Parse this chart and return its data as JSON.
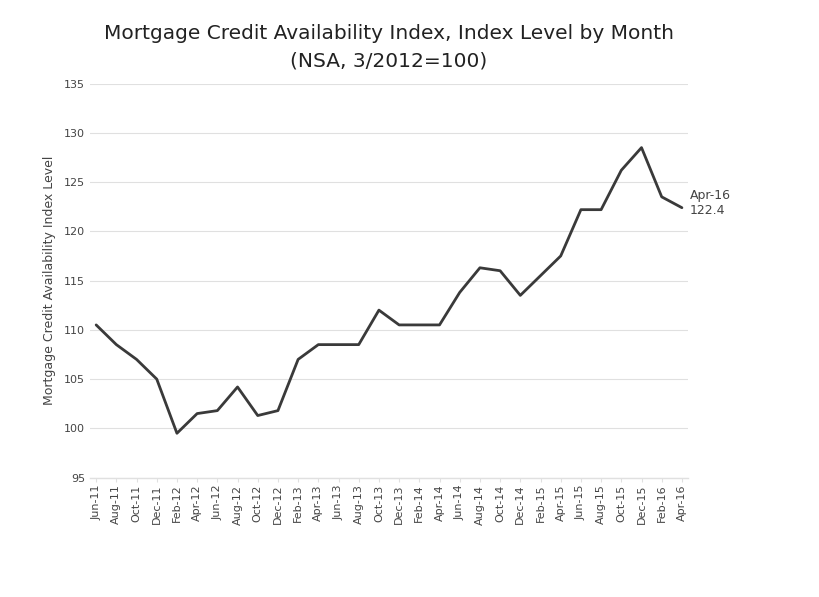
{
  "title": "Mortgage Credit Availability Index, Index Level by Month",
  "subtitle": "(NSA, 3/2012=100)",
  "ylabel": "Mortgage Credit Availability Index Level",
  "annotation_label": "Apr-16\n122.4",
  "line_color": "#3a3a3a",
  "background_color": "#ffffff",
  "border_color": "#cccccc",
  "ylim": [
    95,
    135
  ],
  "yticks": [
    95,
    100,
    105,
    110,
    115,
    120,
    125,
    130,
    135
  ],
  "x_labels": [
    "Jun-11",
    "Aug-11",
    "Oct-11",
    "Dec-11",
    "Feb-12",
    "Apr-12",
    "Jun-12",
    "Aug-12",
    "Oct-12",
    "Dec-12",
    "Feb-13",
    "Apr-13",
    "Jun-13",
    "Aug-13",
    "Oct-13",
    "Dec-13",
    "Feb-14",
    "Apr-14",
    "Jun-14",
    "Aug-14",
    "Oct-14",
    "Dec-14",
    "Feb-15",
    "Apr-15",
    "Jun-15",
    "Aug-15",
    "Oct-15",
    "Dec-15",
    "Feb-16",
    "Apr-16"
  ],
  "values": [
    110.5,
    108.5,
    107.0,
    105.0,
    99.5,
    101.5,
    101.8,
    104.2,
    101.3,
    101.8,
    107.0,
    108.5,
    108.5,
    108.5,
    112.0,
    110.5,
    110.5,
    110.5,
    113.8,
    116.3,
    116.0,
    113.5,
    115.5,
    117.5,
    122.2,
    122.2,
    126.2,
    128.5,
    123.5,
    122.4
  ],
  "title_fontsize": 14.5,
  "subtitle_fontsize": 11,
  "ylabel_fontsize": 9,
  "tick_fontsize": 8,
  "annotation_fontsize": 9,
  "grid_color": "#e0e0e0",
  "tick_color": "#888888",
  "text_color": "#222222",
  "sub_text_color": "#444444"
}
